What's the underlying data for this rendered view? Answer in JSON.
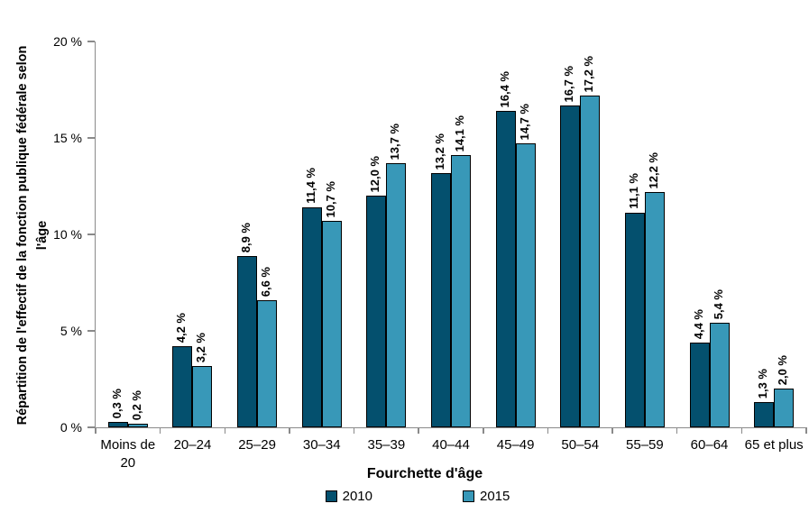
{
  "chart_data": {
    "type": "bar",
    "title": "",
    "xlabel": "Fourchette d'âge",
    "ylabel": "Répartition de l'effectif de la fonction publique fédérale selon l'âge",
    "ylabel_line1": "Répartition de l'effectif de la fonction publique fédérale selon",
    "ylabel_line2": "l'âge",
    "categories": [
      "Moins de 20",
      "20–24",
      "25–29",
      "30–34",
      "35–39",
      "40–44",
      "45–49",
      "50–54",
      "55–59",
      "60–64",
      "65 et plus"
    ],
    "series": [
      {
        "name": "2010",
        "color": "#04506E",
        "values": [
          0.3,
          4.2,
          8.9,
          11.4,
          12.0,
          13.2,
          16.4,
          16.7,
          11.1,
          4.4,
          1.3
        ],
        "labels": [
          "0,3 %",
          "4,2 %",
          "8,9 %",
          "11,4 %",
          "12,0 %",
          "13,2 %",
          "16,4 %",
          "16,7 %",
          "11,1 %",
          "4,4 %",
          "1,3 %"
        ]
      },
      {
        "name": "2015",
        "color": "#3898B8",
        "values": [
          0.2,
          3.2,
          6.6,
          10.7,
          13.7,
          14.1,
          14.7,
          17.2,
          12.2,
          5.4,
          2.0
        ],
        "labels": [
          "0,2 %",
          "3,2 %",
          "6,6 %",
          "10,7 %",
          "13,7 %",
          "14,1 %",
          "14,7 %",
          "17,2 %",
          "12,2 %",
          "5,4 %",
          "2,0 %"
        ]
      }
    ],
    "ylim": [
      0,
      20
    ],
    "yticks": [
      0,
      5,
      10,
      15,
      20
    ],
    "ytick_labels": [
      "0 %",
      "5 %",
      "10 %",
      "15 %",
      "20 %"
    ],
    "grid": false,
    "legend_position": "bottom",
    "bar_border_color": "#000000",
    "axis_color": "#8a8a8a"
  }
}
